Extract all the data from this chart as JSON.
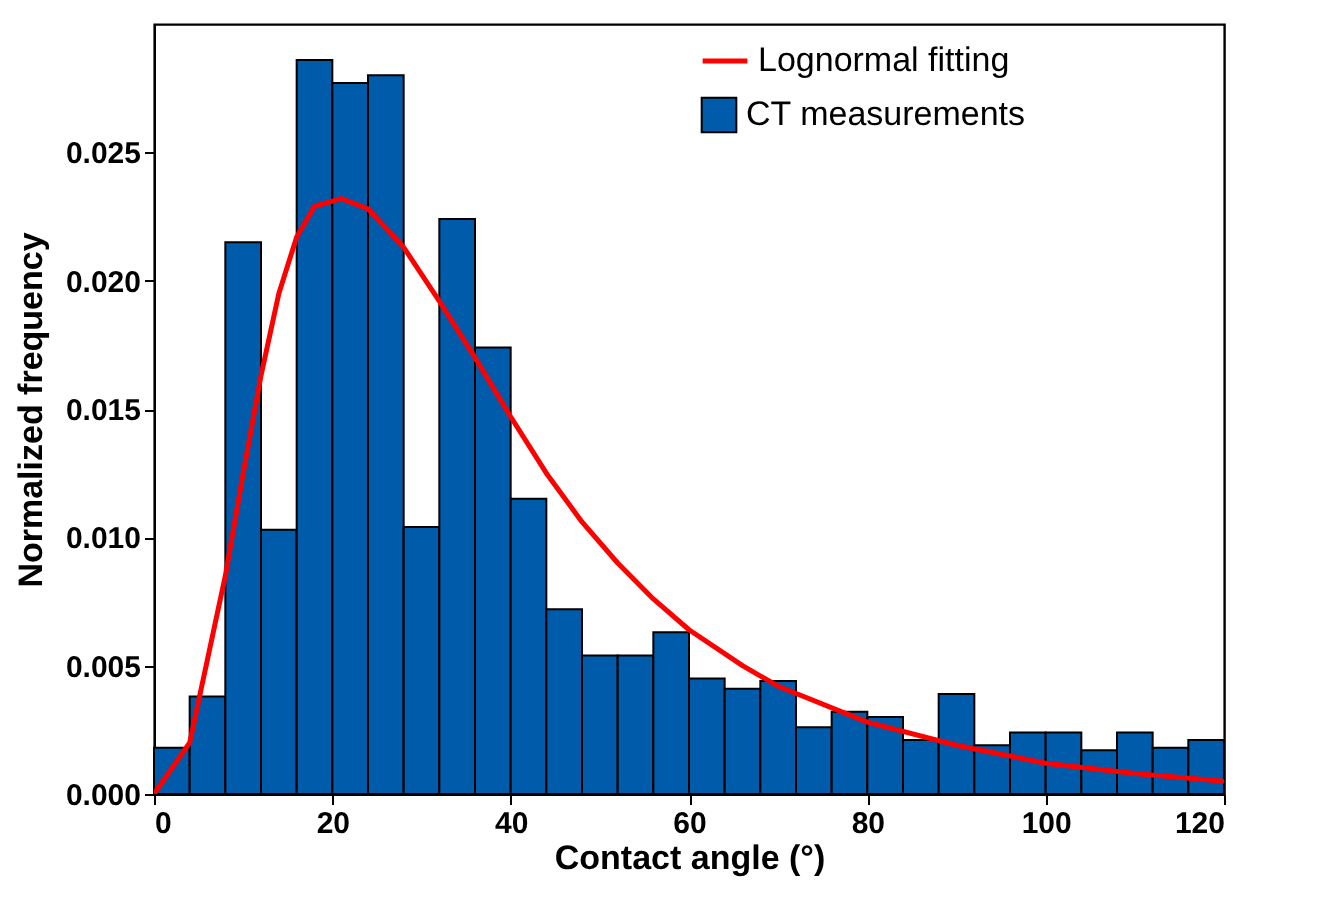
{
  "chart_data": {
    "type": "histogram",
    "xlabel": "Contact angle (°)",
    "ylabel": "Normalized frequency",
    "bins": [
      0,
      4,
      8,
      12,
      16,
      20,
      24,
      28,
      32,
      36,
      40,
      44,
      48,
      52,
      56,
      60,
      64,
      68,
      72,
      76,
      80,
      84,
      88,
      92,
      96,
      100,
      104,
      108,
      112,
      116,
      120
    ],
    "series": [
      {
        "type": "line",
        "name": "Lognormal fitting",
        "color": "#ff0000",
        "x": [
          0,
          4,
          8,
          10,
          12,
          14,
          16,
          18,
          21,
          24,
          28,
          32,
          36,
          40,
          44,
          48,
          52,
          56,
          60,
          66,
          70,
          80,
          90,
          100,
          110,
          120
        ],
        "values": [
          0,
          0.002,
          0.0085,
          0.0125,
          0.0163,
          0.0195,
          0.0217,
          0.0229,
          0.0232,
          0.0228,
          0.0213,
          0.0192,
          0.017,
          0.0147,
          0.0125,
          0.0106,
          0.009,
          0.0076,
          0.0064,
          0.005,
          0.0042,
          0.0028,
          0.0019,
          0.0012,
          0.0008,
          0.0005
        ]
      },
      {
        "name": "CT measurements",
        "color": "#005baa",
        "values": [
          0.0018,
          0.0038,
          0.0215,
          0.0103,
          0.0286,
          0.0277,
          0.028,
          0.0104,
          0.0224,
          0.0174,
          0.0115,
          0.0072,
          0.0054,
          0.0054,
          0.0063,
          0.0045,
          0.0041,
          0.0044,
          0.0026,
          0.0032,
          0.003,
          0.0021,
          0.0039,
          0.0019,
          0.0024,
          0.0024,
          0.0017,
          0.0024,
          0.0018,
          0.0021
        ]
      }
    ],
    "xlim": [
      0,
      120
    ],
    "xticks": [
      0,
      20,
      40,
      60,
      80,
      100,
      120
    ],
    "ylim": [
      0,
      0.03
    ],
    "yticks": [
      {
        "value": 0,
        "label": "0.000"
      },
      {
        "value": 0.005,
        "label": "0.005"
      },
      {
        "value": 0.01,
        "label": "0.010"
      },
      {
        "value": 0.015,
        "label": "0.015"
      },
      {
        "value": 0.02,
        "label": "0.020"
      },
      {
        "value": 0.025,
        "label": "0.025"
      }
    ],
    "legend": "top right",
    "grid": false
  }
}
